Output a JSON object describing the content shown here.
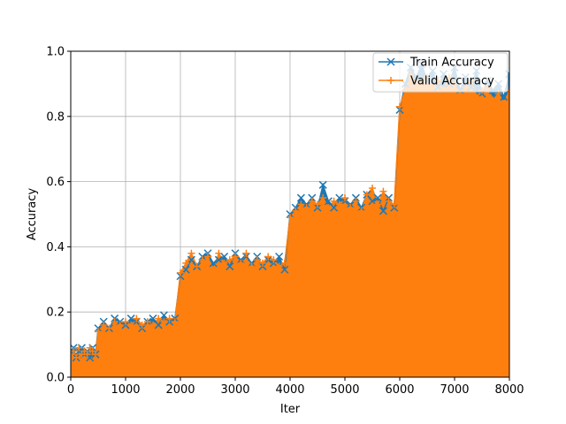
{
  "chart_data": {
    "type": "line",
    "title": "",
    "xlabel": "Iter",
    "ylabel": "Accuracy",
    "xlim": [
      0,
      8000
    ],
    "ylim": [
      0.0,
      1.0
    ],
    "xticks": [
      0,
      1000,
      2000,
      3000,
      4000,
      5000,
      6000,
      7000,
      8000
    ],
    "xtick_labels": [
      "0",
      "1000",
      "2000",
      "3000",
      "4000",
      "5000",
      "6000",
      "7000",
      "8000"
    ],
    "yticks": [
      0.0,
      0.2,
      0.4,
      0.6,
      0.8,
      1.0
    ],
    "ytick_labels": [
      "0.0",
      "0.2",
      "0.4",
      "0.6",
      "0.8",
      "1.0"
    ],
    "grid": true,
    "legend_position": "top-right",
    "series": [
      {
        "name": "Train Accuracy",
        "color": "#1f77b4",
        "marker": "x",
        "x": [
          0,
          50,
          100,
          150,
          200,
          250,
          300,
          350,
          400,
          450,
          500,
          600,
          700,
          800,
          900,
          1000,
          1100,
          1200,
          1300,
          1400,
          1500,
          1600,
          1700,
          1800,
          1900,
          2000,
          2100,
          2200,
          2300,
          2400,
          2500,
          2600,
          2700,
          2800,
          2900,
          3000,
          3100,
          3200,
          3300,
          3400,
          3500,
          3600,
          3700,
          3800,
          3900,
          4000,
          4100,
          4200,
          4300,
          4400,
          4500,
          4600,
          4700,
          4800,
          4900,
          5000,
          5100,
          5200,
          5300,
          5400,
          5500,
          5600,
          5700,
          5800,
          5900,
          6000,
          6100,
          6200,
          6300,
          6400,
          6500,
          6600,
          6700,
          6800,
          6900,
          7000,
          7100,
          7200,
          7300,
          7400,
          7500,
          7600,
          7700,
          7800,
          7900,
          8000
        ],
        "y": [
          0.08,
          0.09,
          0.06,
          0.08,
          0.09,
          0.07,
          0.08,
          0.06,
          0.09,
          0.07,
          0.15,
          0.17,
          0.15,
          0.18,
          0.17,
          0.16,
          0.18,
          0.17,
          0.15,
          0.17,
          0.18,
          0.16,
          0.19,
          0.17,
          0.18,
          0.31,
          0.33,
          0.36,
          0.34,
          0.37,
          0.38,
          0.35,
          0.36,
          0.37,
          0.34,
          0.38,
          0.36,
          0.37,
          0.35,
          0.37,
          0.34,
          0.36,
          0.35,
          0.37,
          0.33,
          0.5,
          0.52,
          0.55,
          0.53,
          0.55,
          0.52,
          0.59,
          0.54,
          0.52,
          0.55,
          0.54,
          0.53,
          0.55,
          0.52,
          0.56,
          0.54,
          0.55,
          0.51,
          0.55,
          0.52,
          0.82,
          0.9,
          0.95,
          0.92,
          0.96,
          0.91,
          0.94,
          0.89,
          0.93,
          0.9,
          0.95,
          0.88,
          0.92,
          0.89,
          0.94,
          0.87,
          0.91,
          0.88,
          0.9,
          0.86,
          0.93
        ]
      },
      {
        "name": "Valid Accuracy",
        "color": "#ff7f0e",
        "marker": "+",
        "x": [
          0,
          50,
          100,
          150,
          200,
          250,
          300,
          350,
          400,
          450,
          500,
          600,
          700,
          800,
          900,
          1000,
          1100,
          1200,
          1300,
          1400,
          1500,
          1600,
          1700,
          1800,
          1900,
          2000,
          2100,
          2200,
          2300,
          2400,
          2500,
          2600,
          2700,
          2800,
          2900,
          3000,
          3100,
          3200,
          3300,
          3400,
          3500,
          3600,
          3700,
          3800,
          3900,
          4000,
          4100,
          4200,
          4300,
          4400,
          4500,
          4600,
          4700,
          4800,
          4900,
          5000,
          5100,
          5200,
          5300,
          5400,
          5500,
          5600,
          5700,
          5800,
          5900,
          6000,
          6100,
          6200,
          6300,
          6400,
          6500,
          6600,
          6700,
          6800,
          6900,
          7000,
          7100,
          7200,
          7300,
          7400,
          7500,
          7600,
          7700,
          7800,
          7900,
          8000
        ],
        "y": [
          0.07,
          0.08,
          0.06,
          0.09,
          0.07,
          0.08,
          0.07,
          0.09,
          0.08,
          0.07,
          0.14,
          0.16,
          0.15,
          0.17,
          0.16,
          0.17,
          0.16,
          0.18,
          0.16,
          0.17,
          0.16,
          0.18,
          0.17,
          0.18,
          0.17,
          0.32,
          0.35,
          0.38,
          0.34,
          0.36,
          0.37,
          0.33,
          0.38,
          0.35,
          0.36,
          0.37,
          0.35,
          0.38,
          0.34,
          0.36,
          0.35,
          0.37,
          0.36,
          0.34,
          0.35,
          0.49,
          0.51,
          0.53,
          0.52,
          0.54,
          0.53,
          0.55,
          0.52,
          0.54,
          0.53,
          0.55,
          0.52,
          0.54,
          0.51,
          0.56,
          0.58,
          0.53,
          0.57,
          0.54,
          0.53,
          0.83,
          0.88,
          0.93,
          0.9,
          0.91,
          0.92,
          0.89,
          0.91,
          0.88,
          0.92,
          0.9,
          0.87,
          0.89,
          0.91,
          0.86,
          0.88,
          0.89,
          0.85,
          0.87,
          0.84,
          0.88
        ]
      }
    ]
  }
}
